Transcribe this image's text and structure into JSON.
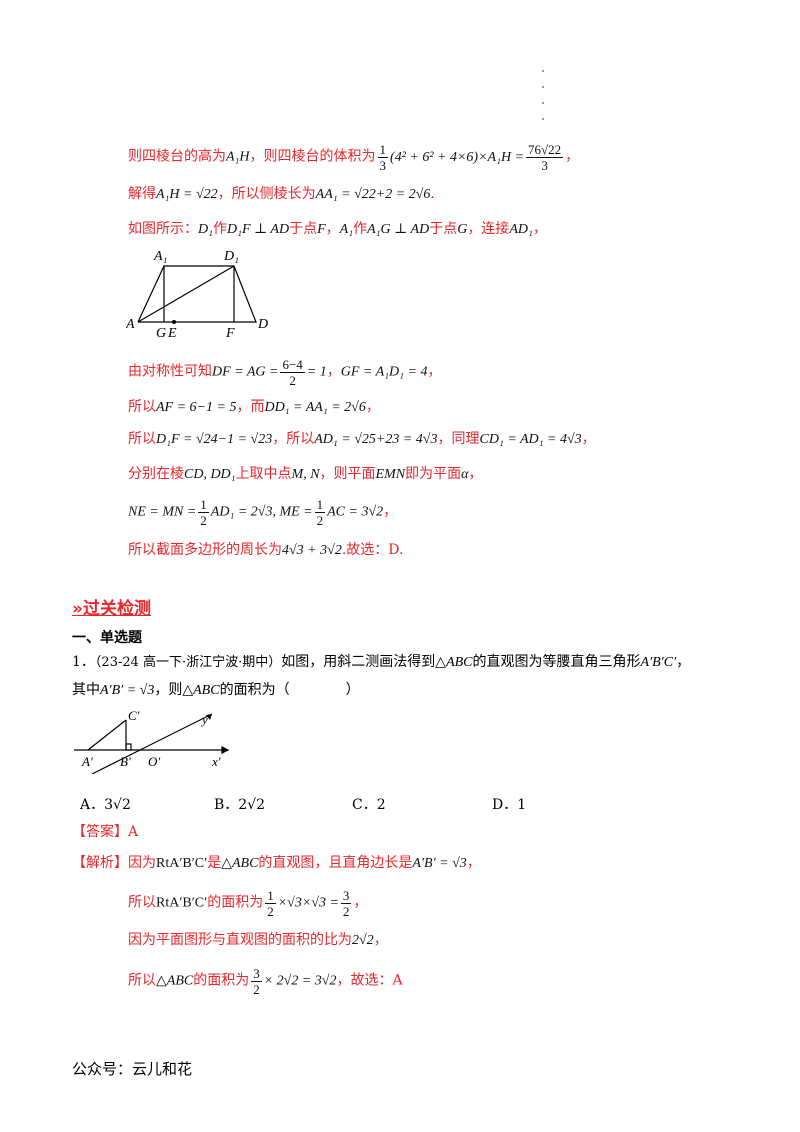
{
  "solution_cont": {
    "line1_text": "则四棱台的高为",
    "line1_var": "A₁H",
    "line1_text2": "，则四棱台的体积为",
    "line1_vol_frac": {
      "n": "1",
      "d": "3"
    },
    "line1_vol_expr": "(4² + 6² + 4×6)×A₁H =",
    "line1_res_frac": {
      "n": "76√22",
      "d": "3"
    },
    "line1_end": "，",
    "line2_text": "解得",
    "line2_expr1": "A₁H = √22",
    "line2_text2": "，所以侧棱长为",
    "line2_expr2": "AA₁ = √22+2 = 2√6",
    "line2_end": ".",
    "line3_text": "如图所示：",
    "line3_p1": "D₁",
    "line3_t1": "作",
    "line3_p2": "D₁F ⊥ AD",
    "line3_t2": "于点",
    "line3_p3": "F",
    "line3_t3": "，",
    "line3_p4": "A₁",
    "line3_t4": "作",
    "line3_p5": "A₁G ⊥ AD",
    "line3_t5": "于点",
    "line3_p6": "G",
    "line3_t6": "，连接",
    "line3_p7": "AD₁",
    "line3_t7": "，",
    "figure1_labels": {
      "A1": "A₁",
      "D1": "D₁",
      "A": "A",
      "G": "G",
      "E": "E",
      "F": "F",
      "D": "D"
    },
    "line4_text": "由对称性可知",
    "line4_expr1": "DF = AG =",
    "line4_frac": {
      "n": "6−4",
      "d": "2"
    },
    "line4_expr2": "= 1",
    "line4_sep": "，",
    "line4_expr3": "GF = A₁D₁ = 4",
    "line4_end": "，",
    "line5_text": "所以",
    "line5_expr1": "AF = 6−1 = 5",
    "line5_text2": "，而",
    "line5_expr2": "DD₁ = AA₁ = 2√6",
    "line5_end": "，",
    "line6_text": "所以",
    "line6_expr1": "D₁F = √24−1 = √23",
    "line6_text2": "，所以",
    "line6_expr2": "AD₁ = √25+23 = 4√3",
    "line6_text3": "，同理",
    "line6_expr3": "CD₁ = AD₁ = 4√3",
    "line6_end": "，",
    "line7_text": "分别在棱",
    "line7_expr1": "CD, DD₁",
    "line7_text2": "上取中点",
    "line7_expr2": "M, N",
    "line7_text3": "，则平面",
    "line7_expr3": "EMN",
    "line7_text4": "即为平面",
    "line7_expr4": "α",
    "line7_end": "，",
    "line8_expr1": "NE = MN =",
    "line8_frac1": {
      "n": "1",
      "d": "2"
    },
    "line8_expr2": "AD₁ = 2√3, ME =",
    "line8_frac2": {
      "n": "1",
      "d": "2"
    },
    "line8_expr3": "AC = 3√2",
    "line8_end": "，",
    "line9_text": "所以截面多边形的周长为",
    "line9_expr": "4√3 + 3√2",
    "line9_end": ".故选：D."
  },
  "section": {
    "title": "»过关检测",
    "subsection": "一、单选题"
  },
  "question1": {
    "number": "1．",
    "source": "（23-24 高一下·浙江宁波·期中）",
    "text1": "如图，用斜二测画法得到",
    "expr1": "△ABC",
    "text2": "的直观图为等腰直角三角形",
    "expr2": "A′B′C′",
    "text3": "，",
    "line2_text": "其中",
    "line2_expr": "A′B′ = √3",
    "line2_text2": "，则",
    "line2_expr2": "△ABC",
    "line2_text3": "的面积为（　　　　）",
    "figure_labels": {
      "C": "C′",
      "y": "y′",
      "A": "A′",
      "B": "B′",
      "O": "O′",
      "x": "x′"
    },
    "options": [
      {
        "label": "A．",
        "value": "3√2"
      },
      {
        "label": "B．",
        "value": "2√2"
      },
      {
        "label": "C．",
        "value": "2"
      },
      {
        "label": "D．",
        "value": "1"
      }
    ],
    "answer_tag": "【答案】",
    "answer": "A",
    "analysis_tag": "【解析】",
    "an1_text": "因为",
    "an1_expr": "RtA′B′C′",
    "an1_text2": "是",
    "an1_expr2": "△ABC",
    "an1_text3": "的直观图，且直角边长是",
    "an1_expr3": "A′B′ = √3",
    "an1_end": "，",
    "an2_text": "所以",
    "an2_expr": "RtA′B′C′",
    "an2_text2": "的面积为",
    "an2_frac": {
      "n": "1",
      "d": "2"
    },
    "an2_expr2": "×√3×√3 =",
    "an2_frac2": {
      "n": "3",
      "d": "2"
    },
    "an2_end": "，",
    "an3_text": "因为平面图形与直观图的面积的比为",
    "an3_expr": "2√2",
    "an3_end": "，",
    "an4_text": "所以",
    "an4_expr": "△ABC",
    "an4_text2": "的面积为",
    "an4_frac": {
      "n": "3",
      "d": "2"
    },
    "an4_expr2": "× 2√2 = 3√2",
    "an4_end": "，故选：A"
  },
  "footer": "公众号：云儿和花"
}
